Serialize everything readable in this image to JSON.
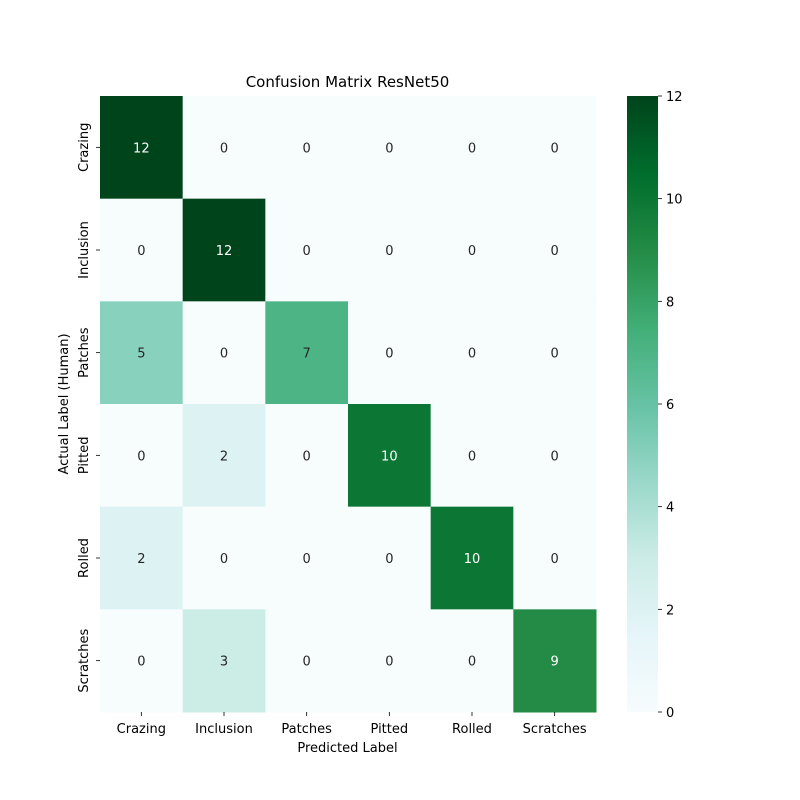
{
  "chart_data": {
    "type": "heatmap",
    "title": "Confusion Matrix ResNet50",
    "xlabel": "Predicted Label",
    "ylabel": "Actual Label (Human)",
    "x_categories": [
      "Crazing",
      "Inclusion",
      "Patches",
      "Pitted",
      "Rolled",
      "Scratches"
    ],
    "y_categories": [
      "Crazing",
      "Inclusion",
      "Patches",
      "Pitted",
      "Rolled",
      "Scratches"
    ],
    "values": [
      [
        12,
        0,
        0,
        0,
        0,
        0
      ],
      [
        0,
        12,
        0,
        0,
        0,
        0
      ],
      [
        5,
        0,
        7,
        0,
        0,
        0
      ],
      [
        0,
        2,
        0,
        10,
        0,
        0
      ],
      [
        2,
        0,
        0,
        0,
        10,
        0
      ],
      [
        0,
        3,
        0,
        0,
        0,
        9
      ]
    ],
    "colorbar": {
      "range": [
        0,
        12
      ],
      "ticks": [
        0,
        2,
        4,
        6,
        8,
        10,
        12
      ],
      "colormap": "BuGn",
      "color_stops": [
        "#f7fcfd",
        "#e5f5f9",
        "#ccece6",
        "#99d8c9",
        "#66c2a4",
        "#41ae76",
        "#238b45",
        "#006d2c",
        "#00441b"
      ]
    }
  }
}
